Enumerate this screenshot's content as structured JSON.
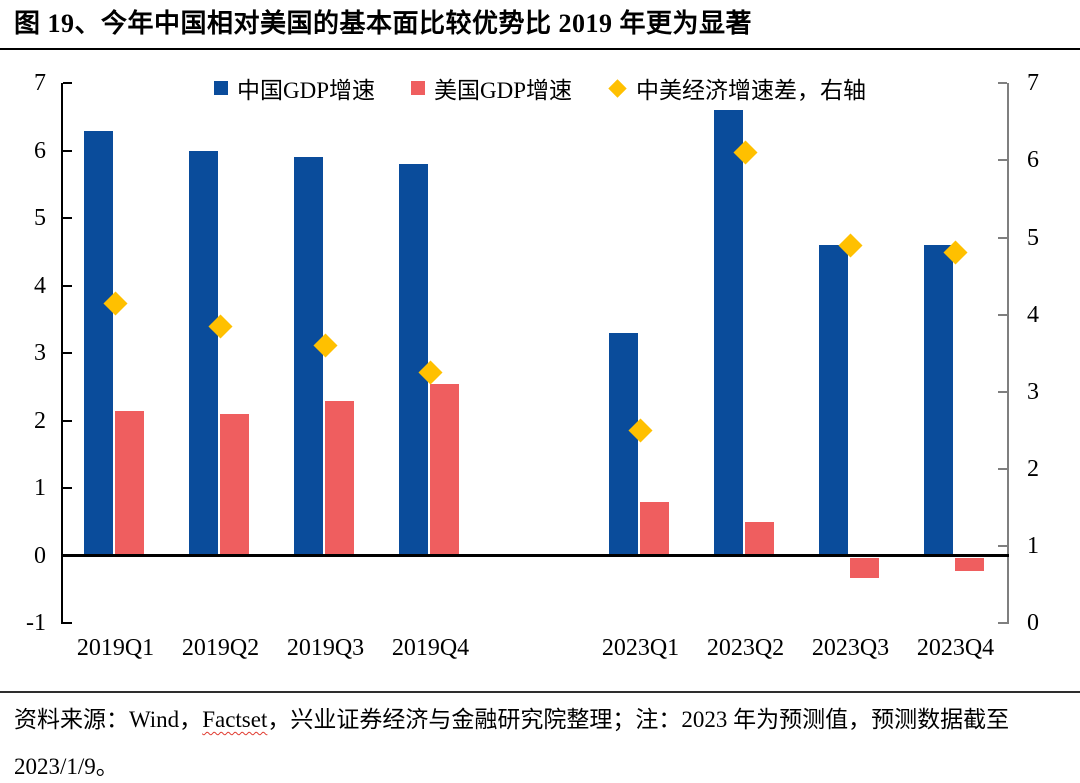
{
  "page": {
    "title": "图 19、今年中国相对美国的基本面比较优势比 2019 年更为显著",
    "footer": {
      "prefix": "资料来源：Wind，",
      "spellcheck_word": "Factset",
      "suffix": "，兴业证券经济与金融研究院整理；注：2023 年为预测值，预测数据截至 2023/1/9。"
    }
  },
  "colors": {
    "china_bar": "#0A4C9B",
    "us_bar": "#EF5E5F",
    "diff_diamond": "#FFC000",
    "left_axis": "#000000",
    "right_axis": "#7F7F7F",
    "spellcheck_underline": "#E03A2F"
  },
  "chart_data": {
    "type": "bar",
    "title": "",
    "xlabel": "",
    "ylabel": "",
    "categories": [
      "2019Q1",
      "2019Q2",
      "2019Q3",
      "2019Q4",
      "",
      "2023Q1",
      "2023Q2",
      "2023Q3",
      "2023Q4"
    ],
    "series": [
      {
        "name": "中国GDP增速",
        "type": "bar",
        "axis": "left",
        "values": [
          6.3,
          6.0,
          5.9,
          5.8,
          null,
          3.3,
          6.6,
          4.6,
          4.6
        ]
      },
      {
        "name": "美国GDP增速",
        "type": "bar",
        "axis": "left",
        "values": [
          2.15,
          2.1,
          2.3,
          2.55,
          null,
          0.8,
          0.5,
          -0.3,
          -0.2
        ]
      },
      {
        "name": "中美经济增速差，右轴",
        "type": "scatter",
        "marker": "diamond",
        "axis": "right",
        "values": [
          4.15,
          3.85,
          3.6,
          3.25,
          null,
          2.5,
          6.1,
          4.9,
          4.8
        ]
      }
    ],
    "left_axis": {
      "min": -1,
      "max": 7,
      "ticks": [
        7,
        6,
        5,
        4,
        3,
        2,
        1,
        0,
        -1
      ]
    },
    "right_axis": {
      "min": 0,
      "max": 7,
      "ticks": [
        7,
        6,
        5,
        4,
        3,
        2,
        1,
        0
      ]
    },
    "grid": false,
    "legend_position": "top-center"
  }
}
